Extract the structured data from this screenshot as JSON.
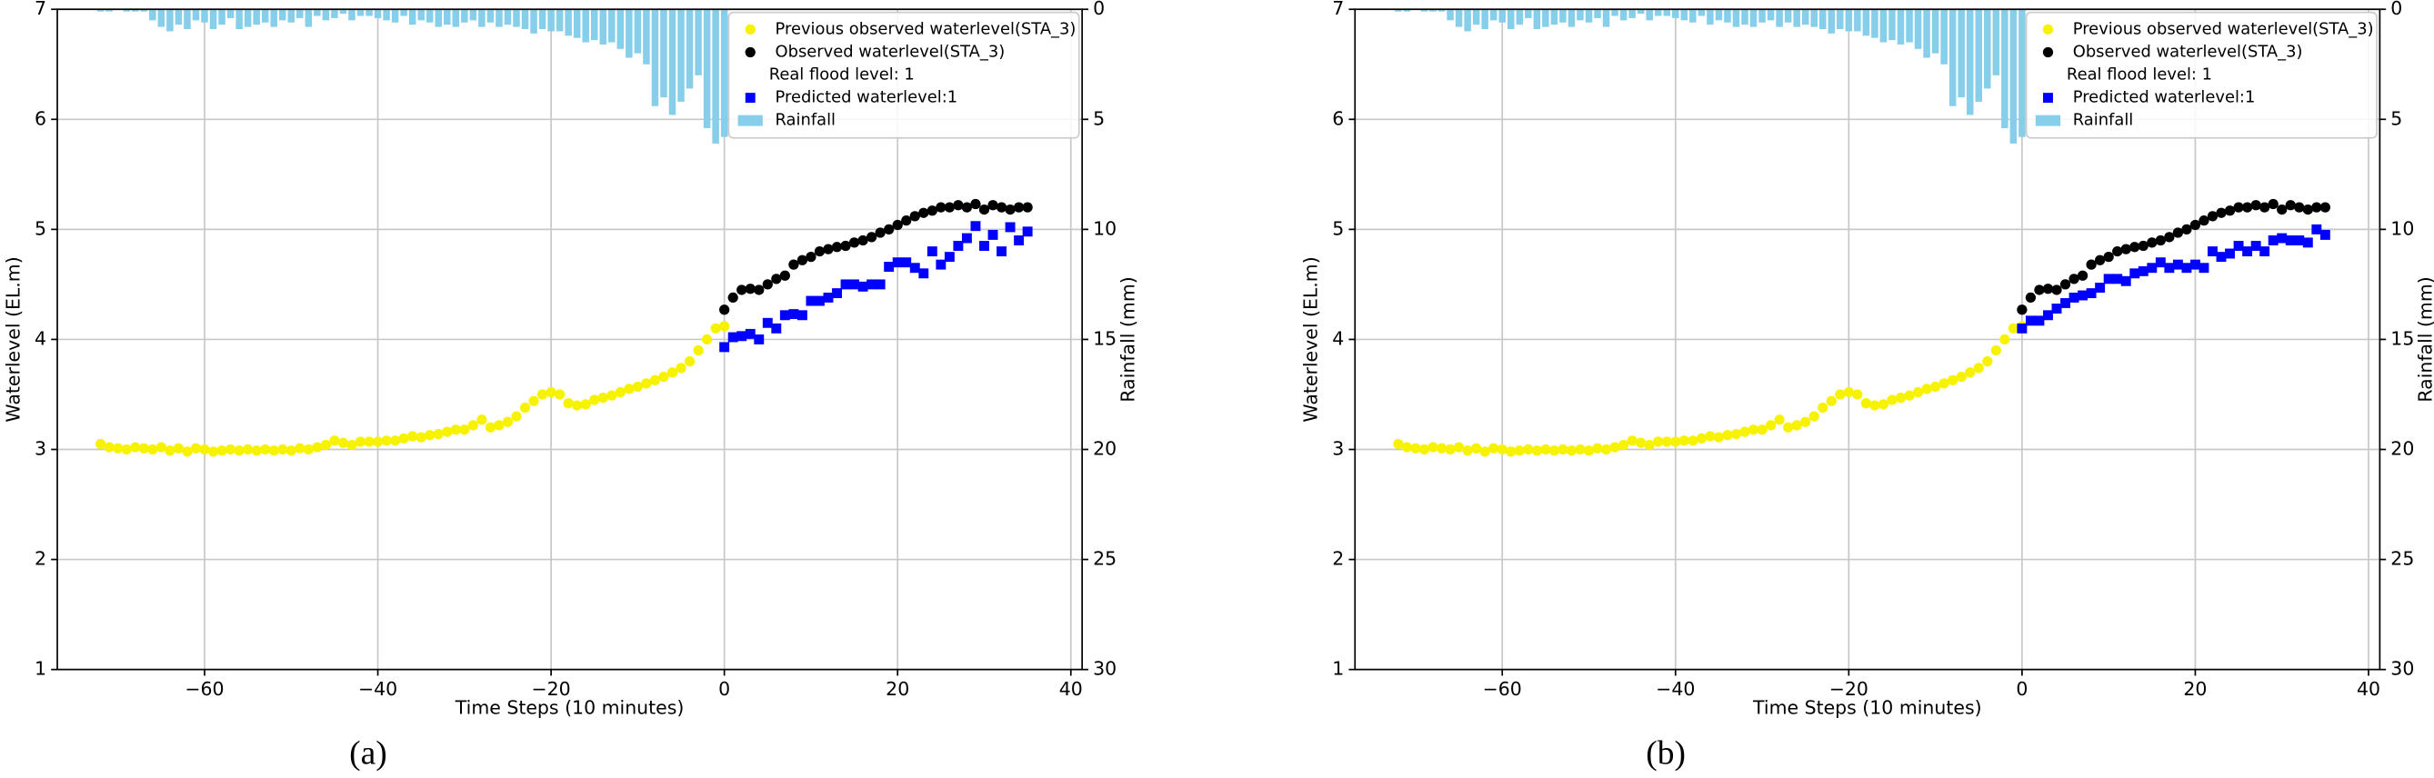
{
  "chart_data": [
    {
      "type": "scatter",
      "label": "(a)",
      "xlabel": "Time Steps (10 minutes)",
      "ylabel": "Waterlevel (EL.m)",
      "y2label": "Rainfall (mm)",
      "xlim": [
        -77,
        41.3
      ],
      "xticks": [
        {
          "value": -60,
          "label": "−60"
        },
        {
          "value": -40,
          "label": "−40"
        },
        {
          "value": -20,
          "label": "−20"
        },
        0,
        20,
        40
      ],
      "ylim": [
        1,
        7
      ],
      "yticks": [
        1,
        2,
        3,
        4,
        5,
        6,
        7
      ],
      "y2lim": [
        0,
        30
      ],
      "y2ticks": [
        0,
        5,
        10,
        15,
        20,
        25,
        30
      ],
      "y2_inverted": true,
      "grid": true,
      "legend": "upper right",
      "annotation": "Real flood level: 1",
      "series": [
        {
          "name": "Previous observed waterlevel(STA_3)",
          "kind": "circle",
          "color": "#f7f300",
          "x": [
            -72,
            -71,
            -70,
            -69,
            -68,
            -67,
            -66,
            -65,
            -64,
            -63,
            -62,
            -61,
            -60,
            -59,
            -58,
            -57,
            -56,
            -55,
            -54,
            -53,
            -52,
            -51,
            -50,
            -49,
            -48,
            -47,
            -46,
            -45,
            -44,
            -43,
            -42,
            -41,
            -40,
            -39,
            -38,
            -37,
            -36,
            -35,
            -34,
            -33,
            -32,
            -31,
            -30,
            -29,
            -28,
            -27,
            -26,
            -25,
            -24,
            -23,
            -22,
            -21,
            -20,
            -19,
            -18,
            -17,
            -16,
            -15,
            -14,
            -13,
            -12,
            -11,
            -10,
            -9,
            -8,
            -7,
            -6,
            -5,
            -4,
            -3,
            -2,
            -1,
            0
          ],
          "values": [
            3.05,
            3.02,
            3.01,
            3.0,
            3.02,
            3.01,
            3.0,
            3.02,
            2.99,
            3.01,
            2.98,
            3.01,
            3.0,
            2.98,
            2.99,
            3.0,
            2.99,
            3.0,
            2.99,
            3.0,
            2.99,
            3.0,
            2.99,
            3.01,
            3.0,
            3.02,
            3.04,
            3.08,
            3.06,
            3.04,
            3.07,
            3.07,
            3.07,
            3.08,
            3.08,
            3.1,
            3.12,
            3.11,
            3.13,
            3.14,
            3.16,
            3.18,
            3.18,
            3.22,
            3.27,
            3.2,
            3.22,
            3.25,
            3.3,
            3.38,
            3.44,
            3.5,
            3.52,
            3.5,
            3.42,
            3.4,
            3.41,
            3.45,
            3.47,
            3.49,
            3.52,
            3.55,
            3.57,
            3.6,
            3.63,
            3.66,
            3.7,
            3.74,
            3.8,
            3.9,
            4.0,
            4.1,
            4.12
          ]
        },
        {
          "name": "Observed waterlevel(STA_3)",
          "kind": "circle",
          "color": "#000000",
          "x": [
            0,
            1,
            2,
            3,
            4,
            5,
            6,
            7,
            8,
            9,
            10,
            11,
            12,
            13,
            14,
            15,
            16,
            17,
            18,
            19,
            20,
            21,
            22,
            23,
            24,
            25,
            26,
            27,
            28,
            29,
            30,
            31,
            32,
            33,
            34,
            35
          ],
          "values": [
            4.27,
            4.38,
            4.45,
            4.46,
            4.45,
            4.5,
            4.55,
            4.58,
            4.68,
            4.72,
            4.75,
            4.8,
            4.82,
            4.84,
            4.85,
            4.88,
            4.9,
            4.93,
            4.97,
            5.0,
            5.04,
            5.08,
            5.12,
            5.15,
            5.17,
            5.2,
            5.2,
            5.22,
            5.2,
            5.23,
            5.18,
            5.22,
            5.2,
            5.18,
            5.2,
            5.2
          ]
        },
        {
          "name": "Predicted waterlevel:1",
          "kind": "square",
          "color": "#0000ff",
          "x": [
            0,
            1,
            2,
            3,
            4,
            5,
            6,
            7,
            8,
            9,
            10,
            11,
            12,
            13,
            14,
            15,
            16,
            17,
            18,
            19,
            20,
            21,
            22,
            23,
            24,
            25,
            26,
            27,
            28,
            29,
            30,
            31,
            32,
            33,
            34,
            35
          ],
          "values": [
            3.93,
            4.02,
            4.03,
            4.05,
            4.0,
            4.15,
            4.1,
            4.22,
            4.23,
            4.22,
            4.35,
            4.35,
            4.38,
            4.42,
            4.5,
            4.5,
            4.48,
            4.5,
            4.5,
            4.66,
            4.7,
            4.7,
            4.65,
            4.6,
            4.8,
            4.68,
            4.75,
            4.85,
            4.92,
            5.03,
            4.85,
            4.95,
            4.8,
            5.02,
            4.9,
            4.98
          ]
        },
        {
          "name": "Rainfall",
          "kind": "bar",
          "axis": "y2",
          "color": "#87ceeb",
          "x": [
            -72,
            -71,
            -70,
            -69,
            -68,
            -67,
            -66,
            -65,
            -64,
            -63,
            -62,
            -61,
            -60,
            -59,
            -58,
            -57,
            -56,
            -55,
            -54,
            -53,
            -52,
            -51,
            -50,
            -49,
            -48,
            -47,
            -46,
            -45,
            -44,
            -43,
            -42,
            -41,
            -40,
            -39,
            -38,
            -37,
            -36,
            -35,
            -34,
            -33,
            -32,
            -31,
            -30,
            -29,
            -28,
            -27,
            -26,
            -25,
            -24,
            -23,
            -22,
            -21,
            -20,
            -19,
            -18,
            -17,
            -16,
            -15,
            -14,
            -13,
            -12,
            -11,
            -10,
            -9,
            -8,
            -7,
            -6,
            -5,
            -4,
            -3,
            -2,
            -1,
            0
          ],
          "values": [
            0.1,
            0.1,
            0,
            0.1,
            0.1,
            0.1,
            0.5,
            0.8,
            1.0,
            0.7,
            0.9,
            0.5,
            0.6,
            0.9,
            0.7,
            0.4,
            0.9,
            0.8,
            0.7,
            0.6,
            0.8,
            0.5,
            0.6,
            0.4,
            0.8,
            0.3,
            0.5,
            0.4,
            0.2,
            0.5,
            0.3,
            0.3,
            0.4,
            0.5,
            0.6,
            0.3,
            0.7,
            0.5,
            0.6,
            0.8,
            0.7,
            0.8,
            0.6,
            0.5,
            0.8,
            0.6,
            0.8,
            0.7,
            0.8,
            0.9,
            1.1,
            0.9,
            1.0,
            1.0,
            1.2,
            1.3,
            1.5,
            1.4,
            1.6,
            1.5,
            1.8,
            2.2,
            2.0,
            2.5,
            4.4,
            4.0,
            4.8,
            4.2,
            3.6,
            3.0,
            5.4,
            6.1,
            5.8
          ]
        }
      ]
    },
    {
      "type": "scatter",
      "label": "(b)",
      "xlabel": "Time Steps (10 minutes)",
      "ylabel": "Waterlevel (EL.m)",
      "y2label": "Rainfall (mm)",
      "xlim": [
        -77,
        41.3
      ],
      "xticks": [
        {
          "value": -60,
          "label": "−60"
        },
        {
          "value": -40,
          "label": "−40"
        },
        {
          "value": -20,
          "label": "−20"
        },
        0,
        20,
        40
      ],
      "ylim": [
        1,
        7
      ],
      "yticks": [
        1,
        2,
        3,
        4,
        5,
        6,
        7
      ],
      "y2lim": [
        0,
        30
      ],
      "y2ticks": [
        0,
        5,
        10,
        15,
        20,
        25,
        30
      ],
      "y2_inverted": true,
      "grid": true,
      "legend": "upper right",
      "annotation": "Real flood level: 1",
      "series": [
        {
          "name": "Previous observed waterlevel(STA_3)",
          "kind": "circle",
          "color": "#f7f300",
          "x": [
            -72,
            -71,
            -70,
            -69,
            -68,
            -67,
            -66,
            -65,
            -64,
            -63,
            -62,
            -61,
            -60,
            -59,
            -58,
            -57,
            -56,
            -55,
            -54,
            -53,
            -52,
            -51,
            -50,
            -49,
            -48,
            -47,
            -46,
            -45,
            -44,
            -43,
            -42,
            -41,
            -40,
            -39,
            -38,
            -37,
            -36,
            -35,
            -34,
            -33,
            -32,
            -31,
            -30,
            -29,
            -28,
            -27,
            -26,
            -25,
            -24,
            -23,
            -22,
            -21,
            -20,
            -19,
            -18,
            -17,
            -16,
            -15,
            -14,
            -13,
            -12,
            -11,
            -10,
            -9,
            -8,
            -7,
            -6,
            -5,
            -4,
            -3,
            -2,
            -1,
            0
          ],
          "values": [
            3.05,
            3.02,
            3.01,
            3.0,
            3.02,
            3.01,
            3.0,
            3.02,
            2.99,
            3.01,
            2.98,
            3.01,
            3.0,
            2.98,
            2.99,
            3.0,
            2.99,
            3.0,
            2.99,
            3.0,
            2.99,
            3.0,
            2.99,
            3.01,
            3.0,
            3.02,
            3.04,
            3.08,
            3.06,
            3.04,
            3.07,
            3.07,
            3.07,
            3.08,
            3.08,
            3.1,
            3.12,
            3.11,
            3.13,
            3.14,
            3.16,
            3.18,
            3.18,
            3.22,
            3.27,
            3.2,
            3.22,
            3.25,
            3.3,
            3.38,
            3.44,
            3.5,
            3.52,
            3.5,
            3.42,
            3.4,
            3.41,
            3.45,
            3.47,
            3.49,
            3.52,
            3.55,
            3.57,
            3.6,
            3.63,
            3.66,
            3.7,
            3.74,
            3.8,
            3.9,
            4.0,
            4.1,
            4.12
          ]
        },
        {
          "name": "Observed waterlevel(STA_3)",
          "kind": "circle",
          "color": "#000000",
          "x": [
            0,
            1,
            2,
            3,
            4,
            5,
            6,
            7,
            8,
            9,
            10,
            11,
            12,
            13,
            14,
            15,
            16,
            17,
            18,
            19,
            20,
            21,
            22,
            23,
            24,
            25,
            26,
            27,
            28,
            29,
            30,
            31,
            32,
            33,
            34,
            35
          ],
          "values": [
            4.27,
            4.38,
            4.45,
            4.46,
            4.45,
            4.5,
            4.55,
            4.58,
            4.68,
            4.72,
            4.75,
            4.8,
            4.82,
            4.84,
            4.85,
            4.88,
            4.9,
            4.93,
            4.97,
            5.0,
            5.04,
            5.08,
            5.12,
            5.15,
            5.17,
            5.2,
            5.2,
            5.22,
            5.2,
            5.23,
            5.18,
            5.22,
            5.2,
            5.18,
            5.2,
            5.2
          ]
        },
        {
          "name": "Predicted waterlevel:1",
          "kind": "square",
          "color": "#0000ff",
          "x": [
            0,
            1,
            2,
            3,
            4,
            5,
            6,
            7,
            8,
            9,
            10,
            11,
            12,
            13,
            14,
            15,
            16,
            17,
            18,
            19,
            20,
            21,
            22,
            23,
            24,
            25,
            26,
            27,
            28,
            29,
            30,
            31,
            32,
            33,
            34,
            35
          ],
          "values": [
            4.1,
            4.17,
            4.17,
            4.22,
            4.28,
            4.33,
            4.38,
            4.4,
            4.42,
            4.47,
            4.55,
            4.55,
            4.53,
            4.6,
            4.62,
            4.65,
            4.7,
            4.65,
            4.68,
            4.65,
            4.68,
            4.65,
            4.8,
            4.75,
            4.78,
            4.85,
            4.8,
            4.85,
            4.8,
            4.9,
            4.92,
            4.9,
            4.9,
            4.88,
            5.0,
            4.95
          ]
        },
        {
          "name": "Rainfall",
          "kind": "bar",
          "axis": "y2",
          "color": "#87ceeb",
          "x": [
            -72,
            -71,
            -70,
            -69,
            -68,
            -67,
            -66,
            -65,
            -64,
            -63,
            -62,
            -61,
            -60,
            -59,
            -58,
            -57,
            -56,
            -55,
            -54,
            -53,
            -52,
            -51,
            -50,
            -49,
            -48,
            -47,
            -46,
            -45,
            -44,
            -43,
            -42,
            -41,
            -40,
            -39,
            -38,
            -37,
            -36,
            -35,
            -34,
            -33,
            -32,
            -31,
            -30,
            -29,
            -28,
            -27,
            -26,
            -25,
            -24,
            -23,
            -22,
            -21,
            -20,
            -19,
            -18,
            -17,
            -16,
            -15,
            -14,
            -13,
            -12,
            -11,
            -10,
            -9,
            -8,
            -7,
            -6,
            -5,
            -4,
            -3,
            -2,
            -1,
            0
          ],
          "values": [
            0.1,
            0.1,
            0,
            0.1,
            0.1,
            0.1,
            0.5,
            0.8,
            1.0,
            0.7,
            0.9,
            0.5,
            0.6,
            0.9,
            0.7,
            0.4,
            0.9,
            0.8,
            0.7,
            0.6,
            0.8,
            0.5,
            0.6,
            0.4,
            0.8,
            0.3,
            0.5,
            0.4,
            0.2,
            0.5,
            0.3,
            0.3,
            0.4,
            0.5,
            0.6,
            0.3,
            0.7,
            0.5,
            0.6,
            0.8,
            0.7,
            0.8,
            0.6,
            0.5,
            0.8,
            0.6,
            0.8,
            0.7,
            0.8,
            0.9,
            1.1,
            0.9,
            1.0,
            1.0,
            1.2,
            1.3,
            1.5,
            1.4,
            1.6,
            1.5,
            1.8,
            2.2,
            2.0,
            2.5,
            4.4,
            4.0,
            4.8,
            4.2,
            3.6,
            3.0,
            5.4,
            6.1,
            5.8
          ]
        }
      ]
    }
  ]
}
